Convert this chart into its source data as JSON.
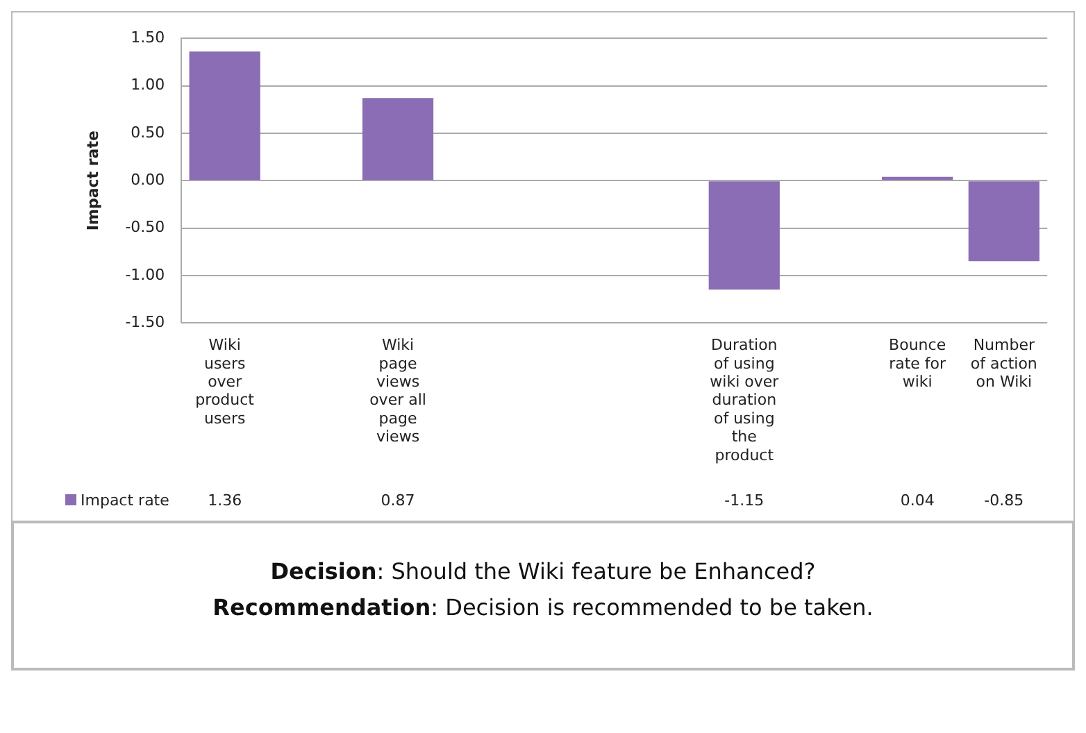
{
  "chart_data": {
    "type": "bar",
    "ylabel": "Impact rate",
    "categories": [
      "Wiki users over product users",
      null,
      "Wiki page views over all page views",
      null,
      null,
      null,
      "Duration of using wiki over duration of using the product",
      null,
      "Bounce rate for wiki",
      "Number of action on Wiki"
    ],
    "series": [
      {
        "name": "Impact rate",
        "color": "#8a6db5",
        "values": [
          1.36,
          null,
          0.87,
          null,
          null,
          null,
          -1.15,
          null,
          0.04,
          -0.85
        ]
      }
    ],
    "ylim": [
      -1.5,
      1.5
    ],
    "yticks": [
      {
        "value": -1.5,
        "label": "-1.50"
      },
      {
        "value": -1,
        "label": "-1.00"
      },
      {
        "value": -0.5,
        "label": "-0.50"
      },
      {
        "value": 0,
        "label": "0.00"
      },
      {
        "value": 0.5,
        "label": "0.50"
      },
      {
        "value": 1,
        "label": "1.00"
      },
      {
        "value": 1.5,
        "label": "1.50"
      }
    ],
    "grid": "y",
    "legend": "bottom",
    "data_labels": true,
    "annotations": [
      "Decision: Should the Wiki feature be Enhanced?",
      "Recommendation: Decision is recommended to be taken."
    ]
  }
}
